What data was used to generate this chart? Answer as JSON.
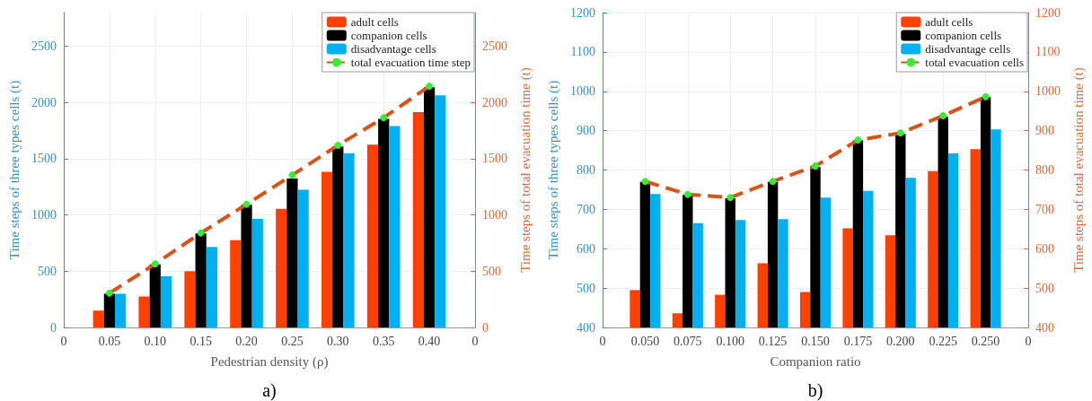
{
  "chart_data": [
    {
      "type": "bar",
      "xlabel": "Pedestrian density (ρ)",
      "ylabel": "Time steps of three types cells (t)",
      "y2label": "Time steps of total evacuation time (t)",
      "categories": [
        "0",
        "0.05",
        "0.10",
        "0.15",
        "0.20",
        "0.25",
        "0.30",
        "0.35",
        "0.40",
        "0"
      ],
      "series": [
        {
          "name": "adult cells",
          "color": "#ff4000",
          "values": [
            null,
            150,
            275,
            500,
            775,
            1055,
            1385,
            1625,
            1915,
            null
          ]
        },
        {
          "name": "companion cells",
          "color": "#000000",
          "values": [
            null,
            300,
            560,
            835,
            1090,
            1325,
            1610,
            1855,
            2135,
            null
          ]
        },
        {
          "name": "disadvantage cells",
          "color": "#00b0f0",
          "values": [
            null,
            300,
            455,
            715,
            965,
            1225,
            1550,
            1790,
            2065,
            null
          ]
        },
        {
          "name": "total evacuation time step",
          "type": "line",
          "axis": "y2",
          "color": "#d95319",
          "line_style": "dashed",
          "marker": "circle",
          "values": [
            null,
            305,
            565,
            840,
            1095,
            1355,
            1620,
            1865,
            2145,
            null
          ]
        }
      ],
      "ylim": [
        0,
        2800
      ],
      "yticks": [
        0,
        500,
        1000,
        1500,
        2000,
        2500
      ],
      "y2lim": [
        0,
        2800
      ],
      "y2ticks": [
        0,
        500,
        1000,
        1500,
        2000,
        2500
      ],
      "grid": true,
      "legend": "top right",
      "annotations": [
        "a)"
      ]
    },
    {
      "type": "bar",
      "xlabel": "Companion ratio",
      "ylabel": "Time steps of three types cells (t)",
      "y2label": "Time steps of total evacuation time (t)",
      "categories": [
        "0",
        "0.050",
        "0.075",
        "0.100",
        "0.125",
        "0.150",
        "0.175",
        "0.200",
        "0.225",
        "0.250",
        "0"
      ],
      "series": [
        {
          "name": "adult cells",
          "color": "#ff4000",
          "values": [
            null,
            495,
            436,
            483,
            563,
            490,
            652,
            634,
            797,
            853,
            null
          ]
        },
        {
          "name": "companion cells",
          "color": "#000000",
          "values": [
            null,
            770,
            737,
            728,
            770,
            808,
            875,
            892,
            935,
            985,
            null
          ]
        },
        {
          "name": "disadvantage cells",
          "color": "#00b0f0",
          "values": [
            null,
            739,
            665,
            673,
            675,
            730,
            747,
            780,
            842,
            903,
            null
          ]
        },
        {
          "name": "total evacuation cells",
          "type": "line",
          "axis": "y2",
          "color": "#d95319",
          "line_style": "dashed",
          "marker": "circle",
          "values": [
            null,
            771,
            738,
            730,
            771,
            810,
            876,
            894,
            938,
            986,
            null
          ]
        }
      ],
      "ylim": [
        400,
        1200
      ],
      "yticks": [
        400,
        500,
        600,
        700,
        800,
        900,
        1000,
        1100,
        1200
      ],
      "y2lim": [
        400,
        1200
      ],
      "y2ticks": [
        400,
        500,
        600,
        700,
        800,
        900,
        1000,
        1100,
        1200
      ],
      "grid": true,
      "legend": "top right",
      "annotations": [
        "b)"
      ]
    }
  ]
}
